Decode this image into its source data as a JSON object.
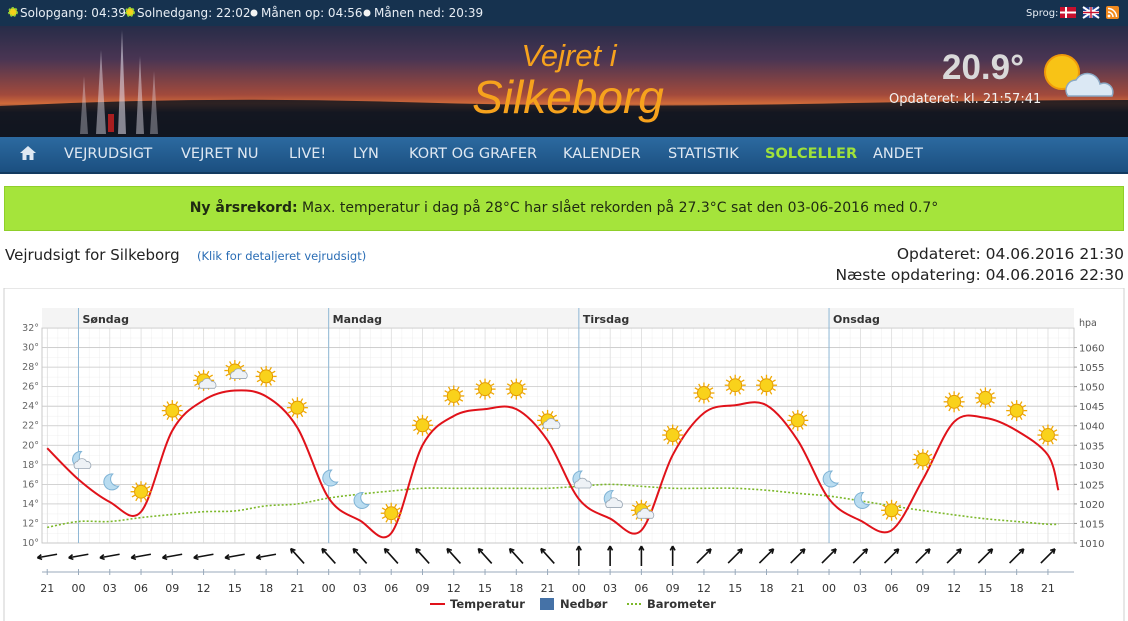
{
  "top_bar": {
    "items": [
      "Solopgang: 04:39",
      "Solnedgang: 22:02",
      "Månen op: 04:56",
      "Månen ned: 20:39"
    ],
    "language_label": "Sprog:"
  },
  "header": {
    "title_line1": "Vejret i",
    "title_line2": "Silkeborg",
    "temperature": "20.9°",
    "updated": "Opdateret: kl. 21:57:41"
  },
  "nav": {
    "items": [
      "VEJRUDSIGT",
      "VEJRET NU",
      "LIVE!",
      "LYN",
      "KORT OG GRAFER",
      "KALENDER",
      "STATISTIK",
      "SOLCELLER",
      "ANDET"
    ]
  },
  "banner": {
    "label": "Ny årsrekord:",
    "text": "Max. temperatur i dag på 28°C har slået rekorden på 27.3°C sat den 03-06-2016 med 0.7°"
  },
  "forecast": {
    "title": "Vejrudsigt for Silkeborg",
    "link": "(Klik for detaljeret vejrudsigt)",
    "updated": "Opdateret: 04.06.2016 21:30",
    "next_update": "Næste opdatering: 04.06.2016 22:30"
  },
  "chart_data": {
    "type": "line",
    "days": [
      {
        "label": "Søndag",
        "x": 3
      },
      {
        "label": "Mandag",
        "x": 27
      },
      {
        "label": "Tirsdag",
        "x": 51
      },
      {
        "label": "Onsdag",
        "x": 75
      }
    ],
    "x": [
      0,
      3,
      6,
      9,
      12,
      15,
      18,
      21,
      24,
      27,
      30,
      33,
      36,
      39,
      42,
      45,
      48,
      51,
      54,
      57,
      60,
      63,
      66,
      69,
      72,
      75,
      78,
      81,
      84,
      87,
      90,
      93,
      96,
      97
    ],
    "xlim": [
      -0.5,
      98.5
    ],
    "xticks": [
      {
        "value": 0,
        "label": "21"
      },
      {
        "value": 3,
        "label": "00"
      },
      {
        "value": 6,
        "label": "03"
      },
      {
        "value": 9,
        "label": "06"
      },
      {
        "value": 12,
        "label": "09"
      },
      {
        "value": 15,
        "label": "12"
      },
      {
        "value": 18,
        "label": "15"
      },
      {
        "value": 21,
        "label": "18"
      },
      {
        "value": 24,
        "label": "21"
      },
      {
        "value": 27,
        "label": "00"
      },
      {
        "value": 30,
        "label": "03"
      },
      {
        "value": 33,
        "label": "06"
      },
      {
        "value": 36,
        "label": "09"
      },
      {
        "value": 39,
        "label": "12"
      },
      {
        "value": 42,
        "label": "15"
      },
      {
        "value": 45,
        "label": "18"
      },
      {
        "value": 48,
        "label": "21"
      },
      {
        "value": 51,
        "label": "00"
      },
      {
        "value": 54,
        "label": "03"
      },
      {
        "value": 57,
        "label": "06"
      },
      {
        "value": 60,
        "label": "09"
      },
      {
        "value": 63,
        "label": "12"
      },
      {
        "value": 66,
        "label": "15"
      },
      {
        "value": 69,
        "label": "18"
      },
      {
        "value": 72,
        "label": "21"
      },
      {
        "value": 75,
        "label": "00"
      },
      {
        "value": 78,
        "label": "03"
      },
      {
        "value": 81,
        "label": "06"
      },
      {
        "value": 84,
        "label": "09"
      },
      {
        "value": 87,
        "label": "12"
      },
      {
        "value": 90,
        "label": "15"
      },
      {
        "value": 93,
        "label": "18"
      },
      {
        "value": 96,
        "label": "21"
      }
    ],
    "ylim": [
      10,
      32
    ],
    "yticks": [
      {
        "value": 10,
        "label": "10°"
      },
      {
        "value": 12,
        "label": "12°"
      },
      {
        "value": 14,
        "label": "14°"
      },
      {
        "value": 16,
        "label": "16°"
      },
      {
        "value": 18,
        "label": "18°"
      },
      {
        "value": 20,
        "label": "20°"
      },
      {
        "value": 22,
        "label": "22°"
      },
      {
        "value": 24,
        "label": "24°"
      },
      {
        "value": 26,
        "label": "26°"
      },
      {
        "value": 28,
        "label": "28°"
      },
      {
        "value": 30,
        "label": "30°"
      },
      {
        "value": 32,
        "label": "32°"
      }
    ],
    "y2label": "hpa",
    "y2lim": [
      1010,
      1065
    ],
    "y2ticks": [
      1010,
      1015,
      1020,
      1025,
      1030,
      1035,
      1040,
      1045,
      1050,
      1055,
      1060
    ],
    "grid": true,
    "series": [
      {
        "name": "Temperatur",
        "color": "#e0121a",
        "values": [
          19.7,
          16.5,
          14.2,
          13.2,
          21.5,
          24.6,
          25.6,
          25.0,
          21.8,
          14.6,
          12.3,
          11.0,
          20.0,
          23.0,
          23.7,
          23.7,
          20.5,
          14.5,
          12.5,
          11.3,
          19.0,
          23.3,
          24.1,
          24.1,
          20.5,
          14.5,
          12.3,
          11.3,
          16.5,
          22.4,
          22.8,
          21.5,
          19.0,
          15.4
        ]
      },
      {
        "name": "Nedbør",
        "color": "#4572a7"
      },
      {
        "name": "Barometer",
        "color": "#7cb82a",
        "axis": "y2",
        "values": [
          1014.0,
          1015.5,
          1015.5,
          1016.5,
          1017.3,
          1018.0,
          1018.2,
          1019.5,
          1020.0,
          1021.5,
          1022.5,
          1023.3,
          1024.0,
          1024.0,
          1024.0,
          1024.0,
          1024.0,
          1024.5,
          1025.0,
          1024.5,
          1024.0,
          1024.0,
          1024.0,
          1023.5,
          1022.7,
          1022.0,
          1020.8,
          1019.5,
          1018.3,
          1017.2,
          1016.2,
          1015.5,
          1014.8,
          1014.8
        ]
      }
    ]
  }
}
